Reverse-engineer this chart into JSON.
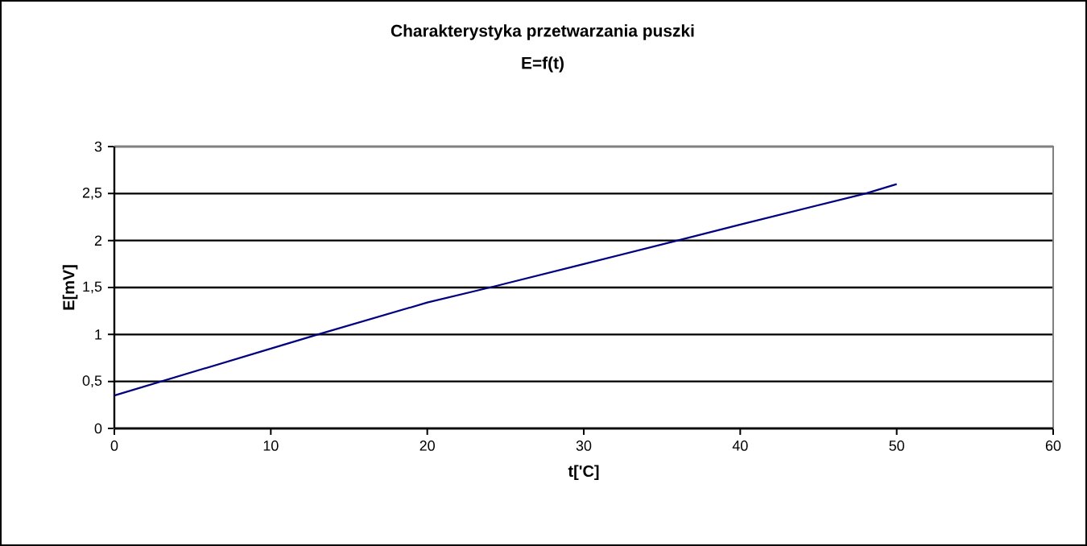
{
  "chart_data": {
    "type": "line",
    "title": "Charakterystyka przetwarzania puszki",
    "subtitle": "E=f(t)",
    "xlabel": "t['C]",
    "ylabel": "E[mV]",
    "x": [
      0,
      10,
      13,
      20,
      24,
      30,
      36,
      40,
      48,
      50
    ],
    "series": [
      {
        "color": "#000080",
        "values": [
          0.35,
          0.85,
          1.0,
          1.34,
          1.5,
          1.75,
          2.0,
          2.17,
          2.5,
          2.6
        ]
      }
    ],
    "xlim": [
      0,
      60
    ],
    "xticks": [
      0,
      10,
      20,
      30,
      40,
      50,
      60
    ],
    "ylim": [
      0,
      3
    ],
    "yticks": [
      {
        "value": 0,
        "label": "0"
      },
      {
        "value": 0.5,
        "label": "0,5"
      },
      {
        "value": 1,
        "label": "1"
      },
      {
        "value": 1.5,
        "label": "1,5"
      },
      {
        "value": 2,
        "label": "2"
      },
      {
        "value": 2.5,
        "label": "2,5"
      },
      {
        "value": 3,
        "label": "3"
      }
    ],
    "grid": "y",
    "marker": "none",
    "line_style": "solid"
  }
}
